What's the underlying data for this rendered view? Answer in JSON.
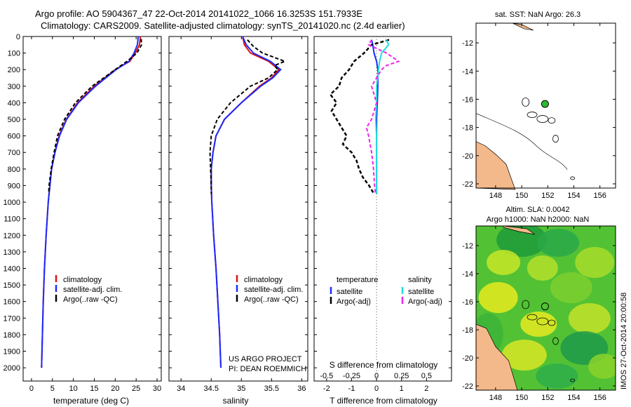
{
  "header": {
    "title_line1": "Argo profile: AO 5904367_47 22-Oct-2014 20141022_1066 16.3253S 151.7933E",
    "title_line2": "Climatology: CARS2009. Satellite-adjusted climatology: synTS_20141020.nc (2.4d earlier)"
  },
  "colors": {
    "climatology": "#e01010",
    "satellite_adj": "#1a2bff",
    "argo": "#000000",
    "satellite_s": "#22dddd",
    "argo_s": "#ee22ee",
    "land": "#f4b98a",
    "map_ocean": "#ffffff",
    "argo_marker": "#2fb82f"
  },
  "chart_data": [
    {
      "type": "line",
      "panel": "temperature",
      "xlabel": "temperature (deg C)",
      "ylabel": "",
      "xlim": [
        -2,
        31
      ],
      "ylim": [
        2080,
        0
      ],
      "xticks": [
        "0",
        "5",
        "10",
        "15",
        "20",
        "25",
        "30"
      ],
      "yticks": [
        "0",
        "100",
        "200",
        "300",
        "400",
        "500",
        "600",
        "700",
        "800",
        "900",
        "1000",
        "1100",
        "1200",
        "1300",
        "1400",
        "1500",
        "1600",
        "1700",
        "1800",
        "1900",
        "2000"
      ],
      "legend": [
        "climatology",
        "satellite-adj. clim.",
        "Argo(..raw -QC)"
      ],
      "series": [
        {
          "name": "climatology",
          "depth": [
            0,
            50,
            100,
            150,
            200,
            300,
            400,
            500,
            600,
            700,
            800,
            900,
            1000,
            1200,
            1400,
            1600,
            1800,
            2000
          ],
          "values": [
            26.0,
            25.8,
            24.8,
            23.5,
            20.0,
            15.0,
            11.0,
            8.3,
            6.6,
            5.6,
            4.8,
            4.4,
            4.0,
            3.5,
            3.1,
            2.8,
            2.6,
            2.4
          ]
        },
        {
          "name": "satellite-adj. clim.",
          "depth": [
            0,
            50,
            100,
            150,
            200,
            300,
            400,
            500,
            600,
            700,
            800,
            900,
            1000,
            1200,
            1400,
            1600,
            1800,
            2000
          ],
          "values": [
            25.5,
            25.3,
            24.5,
            23.3,
            20.2,
            15.3,
            11.2,
            8.4,
            6.7,
            5.6,
            4.8,
            4.4,
            4.0,
            3.5,
            3.1,
            2.8,
            2.6,
            2.4
          ]
        },
        {
          "name": "Argo(..raw -QC)",
          "depth": [
            15,
            50,
            100,
            150,
            200,
            300,
            400,
            500,
            600,
            700,
            800,
            900,
            950
          ],
          "values": [
            26.2,
            26.3,
            25.2,
            22.8,
            20.0,
            14.5,
            10.5,
            7.9,
            6.2,
            5.4,
            4.7,
            4.2,
            4.1
          ]
        }
      ]
    },
    {
      "type": "line",
      "panel": "salinity",
      "xlabel": "salinity",
      "ylabel": "",
      "xlim": [
        33.8,
        36.1
      ],
      "ylim": [
        2080,
        0
      ],
      "xticks": [
        "34",
        "34.5",
        "35",
        "35.5",
        "36"
      ],
      "legend": [
        "climatology",
        "satellite-adj. clim.",
        "Argo(..raw -QC)"
      ],
      "annotation": [
        "US ARGO PROJECT",
        "PI: DEAN ROEMMICH"
      ],
      "series": [
        {
          "name": "climatology",
          "depth": [
            0,
            50,
            100,
            150,
            200,
            250,
            300,
            400,
            500,
            600,
            700,
            800,
            900,
            1000,
            1200,
            1400,
            1600,
            1800,
            2000
          ],
          "values": [
            35.02,
            35.05,
            35.15,
            35.45,
            35.62,
            35.5,
            35.3,
            35.0,
            34.72,
            34.58,
            34.53,
            34.5,
            34.5,
            34.51,
            34.54,
            34.58,
            34.61,
            34.64,
            34.66
          ]
        },
        {
          "name": "satellite-adj. clim.",
          "depth": [
            0,
            50,
            100,
            150,
            200,
            250,
            300,
            400,
            500,
            600,
            700,
            800,
            900,
            1000,
            1200,
            1400,
            1600,
            1800,
            2000
          ],
          "values": [
            35.02,
            35.08,
            35.2,
            35.48,
            35.65,
            35.52,
            35.32,
            35.0,
            34.72,
            34.58,
            34.53,
            34.5,
            34.5,
            34.51,
            34.54,
            34.58,
            34.61,
            34.64,
            34.66
          ]
        },
        {
          "name": "Argo(..raw -QC)",
          "depth": [
            20,
            60,
            100,
            150,
            175,
            200,
            250,
            300,
            400,
            500,
            600,
            700,
            800,
            900,
            950
          ],
          "values": [
            35.1,
            35.2,
            35.35,
            35.72,
            35.55,
            35.6,
            35.45,
            35.15,
            34.82,
            34.6,
            34.5,
            34.48,
            34.49,
            34.5,
            34.5
          ]
        }
      ]
    },
    {
      "type": "line",
      "panel": "difference",
      "xlabel_bottom": "T difference from climatology",
      "xlabel_top": "S difference from climatology",
      "xlim_T": [
        -2.5,
        3.0
      ],
      "xlim_S": [
        -0.625,
        0.75
      ],
      "xticks_T": [
        "-2",
        "-1",
        "0",
        "1",
        "2"
      ],
      "xticks_S": [
        "-0.5",
        "-0.25",
        "0",
        "0.25",
        "0.5"
      ],
      "ylim": [
        2080,
        0
      ],
      "legend_headers": [
        "temperature",
        "salinity"
      ],
      "legend": [
        "satellite",
        "Argo(-adj)",
        "satellite",
        "Argo(-adj)"
      ],
      "series": [
        {
          "name": "T satellite",
          "depth": [
            20,
            50,
            100,
            150,
            200,
            300,
            400,
            500,
            600,
            700,
            800,
            900,
            950
          ],
          "values": [
            -0.2,
            -0.15,
            -0.1,
            0.0,
            0.05,
            0.05,
            0.03,
            0.0,
            0.0,
            0.0,
            0.0,
            0.0,
            0.0
          ]
        },
        {
          "name": "T Argo(-adj)",
          "depth": [
            20,
            50,
            100,
            150,
            200,
            250,
            300,
            350,
            400,
            450,
            500,
            550,
            600,
            650,
            700,
            750,
            800,
            850,
            900,
            950
          ],
          "values": [
            0.5,
            -0.2,
            -0.5,
            -0.9,
            -1.1,
            -1.4,
            -1.5,
            -1.85,
            -1.6,
            -1.8,
            -1.6,
            -1.4,
            -1.2,
            -1.35,
            -1.0,
            -0.8,
            -0.7,
            -0.55,
            -0.3,
            -0.1
          ]
        },
        {
          "name": "S satellite",
          "depth": [
            20,
            50,
            100,
            150,
            200,
            300,
            400,
            500,
            600,
            700,
            800,
            900,
            950
          ],
          "values": [
            0.1,
            0.12,
            0.05,
            0.03,
            0.02,
            0.0,
            0.0,
            -0.01,
            0.0,
            0.0,
            0.0,
            0.0,
            0.0
          ]
        },
        {
          "name": "S Argo(-adj)",
          "depth": [
            20,
            50,
            100,
            150,
            175,
            200,
            300,
            400,
            500,
            550,
            600,
            700,
            800,
            900,
            950
          ],
          "values": [
            -0.05,
            -0.08,
            0.1,
            0.22,
            0.1,
            0.05,
            -0.05,
            0.0,
            -0.05,
            -0.1,
            -0.08,
            -0.05,
            -0.03,
            -0.02,
            -0.01
          ]
        }
      ]
    },
    {
      "type": "map",
      "panel": "sst",
      "title": "sat. SST: NaN Argo: 26.3",
      "xlim": [
        146.5,
        157.2
      ],
      "ylim": [
        -22.3,
        -10.6
      ],
      "xticks": [
        "148",
        "150",
        "152",
        "154",
        "156"
      ],
      "yticks": [
        "-12",
        "-14",
        "-16",
        "-18",
        "-20",
        "-22"
      ],
      "argo_position": {
        "lon": 151.79,
        "lat": -16.33
      }
    },
    {
      "type": "heatmap",
      "panel": "sla",
      "title_line1": "Altim. SLA: 0.0042",
      "title_line2": "Argo h1000: NaN h2000: NaN",
      "xlim": [
        146.5,
        157.2
      ],
      "ylim": [
        -22.3,
        -10.6
      ],
      "xticks": [
        "148",
        "150",
        "152",
        "154",
        "156"
      ],
      "yticks": [
        "-12",
        "-14",
        "-16",
        "-18",
        "-20",
        "-22"
      ],
      "argo_position": {
        "lon": 151.79,
        "lat": -16.33
      }
    }
  ],
  "footer": {
    "stamp": "IMOS 27-Oct-2014 20:00:58"
  }
}
